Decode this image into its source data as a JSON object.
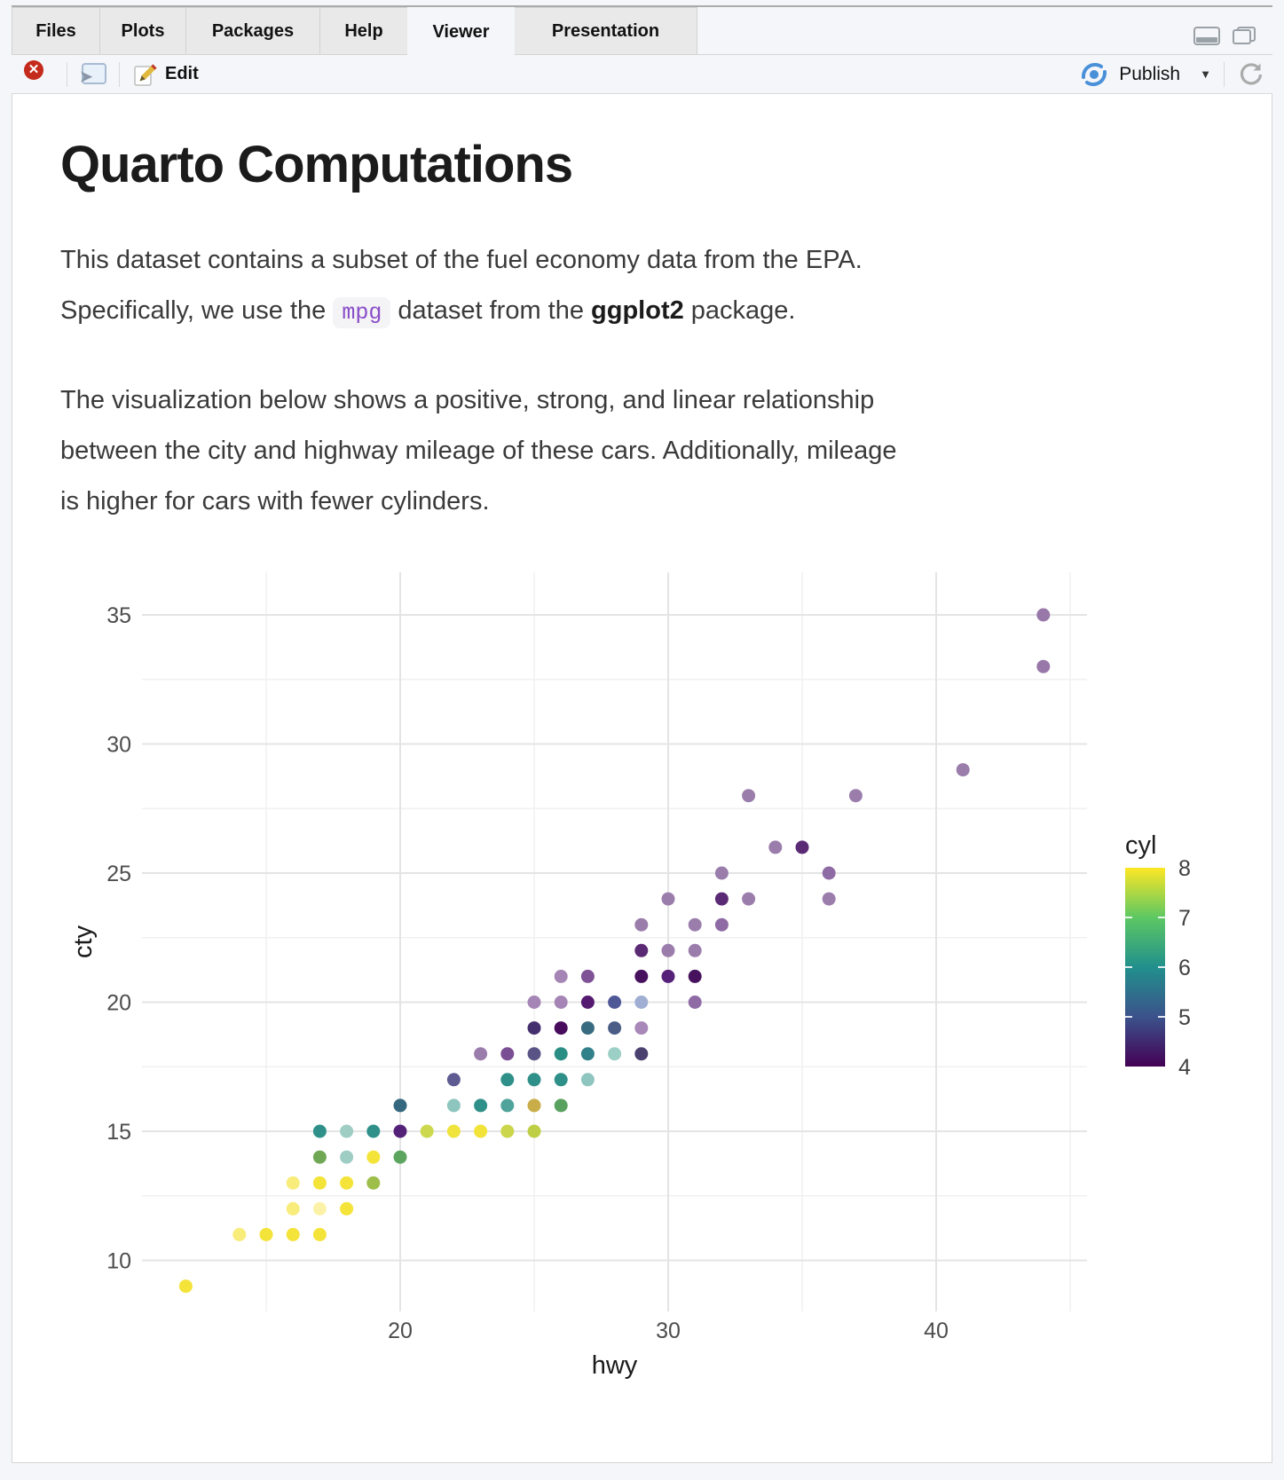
{
  "tabs": {
    "items": [
      {
        "label": "Files"
      },
      {
        "label": "Plots"
      },
      {
        "label": "Packages"
      },
      {
        "label": "Help"
      },
      {
        "label": "Viewer"
      },
      {
        "label": "Presentation"
      }
    ],
    "active": "Viewer"
  },
  "toolbar": {
    "edit_label": "Edit",
    "publish_label": "Publish",
    "caret_glyph": "▼"
  },
  "document": {
    "title": "Quarto Computations",
    "p1_line1": "This dataset contains a subset of the fuel economy data from the EPA.",
    "p1_line2_pre": "Specifically, we use the ",
    "p1_code": "mpg",
    "p1_line2_mid": " dataset from the ",
    "p1_bold": "ggplot2",
    "p1_line2_post": " package.",
    "p2_line1": "The visualization below shows a positive, strong, and linear relationship",
    "p2_line2": "between the city and highway mileage of these cars. Additionally, mileage",
    "p2_line3": "is higher for cars with fewer cylinders."
  },
  "chart_data": {
    "type": "scatter",
    "xlabel": "hwy",
    "ylabel": "cty",
    "xlim": [
      10.4,
      45.6
    ],
    "ylim": [
      8.1,
      36.6
    ],
    "x_ticks": [
      20,
      30,
      40
    ],
    "x_minor": [
      15,
      25,
      35,
      45
    ],
    "y_ticks": [
      35,
      30,
      25,
      20,
      15,
      10
    ],
    "y_minor": [
      32.5,
      27.5,
      22.5,
      17.5,
      12.5
    ],
    "grid": {
      "major_color": "#E4E4E4",
      "minor_color": "#F0F0F0",
      "background": "#FFFFFF"
    },
    "tick_label_color": "#4D4D4D",
    "axis_title_color": "#1A1A1A",
    "legend": {
      "title": "cyl",
      "position": "right",
      "min": 4,
      "max": 8,
      "labels": [
        8,
        7,
        6,
        5,
        4
      ],
      "bar_tick_values": [
        5,
        6,
        7
      ],
      "viridis_stops_top_to_bottom": [
        "#FDE725",
        "#5DC863",
        "#21908C",
        "#3B528B",
        "#440154"
      ]
    },
    "series_note": "points are [hwy, cty, rendered_color]; color encodes cyl (4=dark purple, 5=blue, 6=teal, 8=yellow; blends/overlaps darker)",
    "points": [
      [
        44,
        35,
        "#9878A8"
      ],
      [
        44,
        33,
        "#9878A8"
      ],
      [
        41,
        29,
        "#9B7DAC"
      ],
      [
        33,
        28,
        "#9B7DAC"
      ],
      [
        37,
        28,
        "#9B7DAC"
      ],
      [
        34,
        26,
        "#9B7DAC"
      ],
      [
        35,
        26,
        "#5B2A75"
      ],
      [
        32,
        25,
        "#9B7DAC"
      ],
      [
        36,
        25,
        "#8F6BA5"
      ],
      [
        30,
        24,
        "#9B7DAC"
      ],
      [
        32,
        24,
        "#5B2A75"
      ],
      [
        33,
        24,
        "#9B7DAC"
      ],
      [
        36,
        24,
        "#9B7DAC"
      ],
      [
        29,
        23,
        "#9B7DAC"
      ],
      [
        31,
        23,
        "#9B7DAC"
      ],
      [
        32,
        23,
        "#8F6BA5"
      ],
      [
        29,
        22,
        "#5B2A75"
      ],
      [
        30,
        22,
        "#9B7DAC"
      ],
      [
        31,
        22,
        "#9B7DAC"
      ],
      [
        26,
        21,
        "#A585B5"
      ],
      [
        27,
        21,
        "#7E5295"
      ],
      [
        29,
        21,
        "#47125D"
      ],
      [
        30,
        21,
        "#552179"
      ],
      [
        31,
        21,
        "#47125D"
      ],
      [
        25,
        20,
        "#A585B5"
      ],
      [
        26,
        20,
        "#A585B5"
      ],
      [
        27,
        20,
        "#551A70"
      ],
      [
        28,
        20,
        "#4F5896"
      ],
      [
        29,
        20,
        "#9FAED2"
      ],
      [
        31,
        20,
        "#8F6BA5"
      ],
      [
        25,
        19,
        "#44306E"
      ],
      [
        26,
        19,
        "#470D5C"
      ],
      [
        27,
        19,
        "#386B80"
      ],
      [
        28,
        19,
        "#4A5D87"
      ],
      [
        29,
        19,
        "#A788B8"
      ],
      [
        23,
        18,
        "#9B7DAC"
      ],
      [
        24,
        18,
        "#7A4E92"
      ],
      [
        25,
        18,
        "#5A5486"
      ],
      [
        26,
        18,
        "#2B8E85"
      ],
      [
        27,
        18,
        "#32808A"
      ],
      [
        28,
        18,
        "#9CCFC6"
      ],
      [
        29,
        18,
        "#4A416F"
      ],
      [
        22,
        17,
        "#5D5B91"
      ],
      [
        24,
        17,
        "#2E9089"
      ],
      [
        25,
        17,
        "#2E9089"
      ],
      [
        26,
        17,
        "#2E9089"
      ],
      [
        27,
        17,
        "#8FC5BF"
      ],
      [
        20,
        16,
        "#35687E"
      ],
      [
        22,
        16,
        "#8FC5BF"
      ],
      [
        23,
        16,
        "#2E9089"
      ],
      [
        24,
        16,
        "#4FA39B"
      ],
      [
        25,
        16,
        "#C9AD48"
      ],
      [
        26,
        16,
        "#58A15F"
      ],
      [
        17,
        15,
        "#2E9089"
      ],
      [
        18,
        15,
        "#9ECDC4"
      ],
      [
        19,
        15,
        "#2E9089"
      ],
      [
        20,
        15,
        "#542179"
      ],
      [
        21,
        15,
        "#CCD94E"
      ],
      [
        22,
        15,
        "#EFE33C"
      ],
      [
        23,
        15,
        "#F2E338"
      ],
      [
        24,
        15,
        "#CBD64B"
      ],
      [
        25,
        15,
        "#BFCF45"
      ],
      [
        17,
        14,
        "#6FA755"
      ],
      [
        18,
        14,
        "#9ECDC4"
      ],
      [
        19,
        14,
        "#F4E43A"
      ],
      [
        20,
        14,
        "#5CA55F"
      ],
      [
        16,
        13,
        "#F8EC7A"
      ],
      [
        17,
        13,
        "#F4E339"
      ],
      [
        18,
        13,
        "#F4E339"
      ],
      [
        19,
        13,
        "#9DBE4B"
      ],
      [
        16,
        12,
        "#F8EC7A"
      ],
      [
        17,
        12,
        "#FBF2A8"
      ],
      [
        18,
        12,
        "#F4E339"
      ],
      [
        14,
        11,
        "#F8EC7A"
      ],
      [
        15,
        11,
        "#F4E339"
      ],
      [
        16,
        11,
        "#F4E339"
      ],
      [
        17,
        11,
        "#F4E339"
      ],
      [
        12,
        9,
        "#F4E339"
      ]
    ]
  }
}
